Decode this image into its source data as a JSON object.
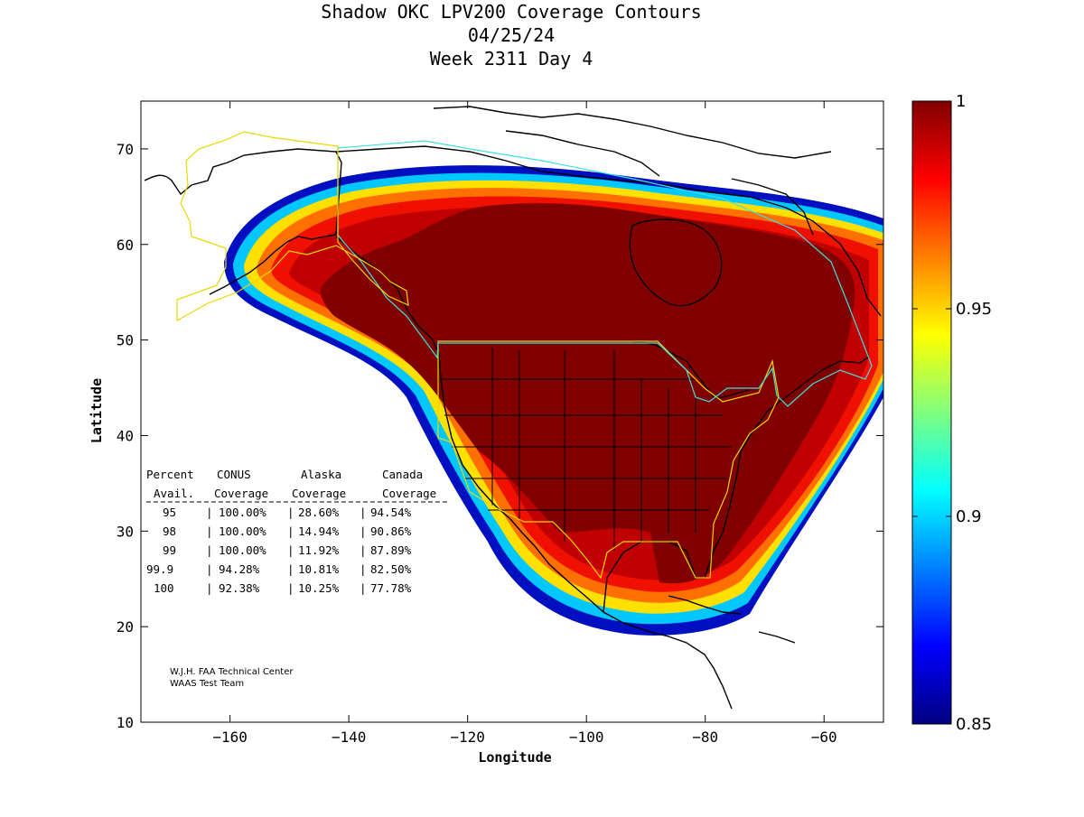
{
  "figure": {
    "title_lines": [
      "Shadow OKC LPV200 Coverage Contours",
      "04/25/24",
      "Week 2311 Day 4"
    ],
    "xlabel": "Longitude",
    "ylabel": "Latitude",
    "xticks": [
      -160,
      -140,
      -120,
      -100,
      -80,
      -60
    ],
    "yticks": [
      10,
      20,
      30,
      40,
      50,
      60,
      70
    ],
    "xlim": [
      -175,
      -50
    ],
    "ylim": [
      10,
      75
    ],
    "colorbar": {
      "range": [
        0.85,
        1
      ],
      "ticks": [
        "0.85",
        "0.9",
        "0.95",
        "1"
      ],
      "colormap": "jet"
    },
    "coverage_table": {
      "header_line1": [
        "Percent",
        "CONUS",
        "Alaska",
        "Canada"
      ],
      "header_line2": [
        "Avail.",
        "Coverage",
        "Coverage",
        "Coverage"
      ],
      "rows": [
        [
          "95",
          "100.00%",
          "28.60%",
          "94.54%"
        ],
        [
          "98",
          "100.00%",
          "14.94%",
          "90.86%"
        ],
        [
          "99",
          "100.00%",
          "11.92%",
          "87.89%"
        ],
        [
          "99.9",
          "94.28%",
          "10.81%",
          "82.50%"
        ],
        [
          "100",
          "92.38%",
          "10.25%",
          "77.78%"
        ]
      ]
    },
    "credit_lines": [
      "W.J.H. FAA Technical Center",
      "WAAS Test Team"
    ]
  },
  "colors": {
    "full_coverage": "#800000",
    "conus_outline": "#e8d800",
    "canada_outline": "#40e0e0",
    "coast": "#000000"
  }
}
